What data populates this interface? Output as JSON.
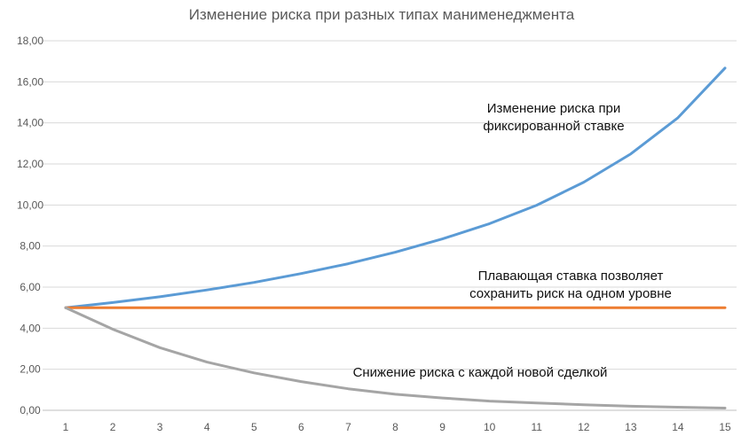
{
  "chart_data": {
    "type": "line",
    "title": "Изменение риска при разных типах манименеджмента",
    "xlabel": "",
    "ylabel": "",
    "x": [
      1,
      2,
      3,
      4,
      5,
      6,
      7,
      8,
      9,
      10,
      11,
      12,
      13,
      14,
      15
    ],
    "x_tick_labels": [
      "1",
      "2",
      "3",
      "4",
      "5",
      "6",
      "7",
      "8",
      "9",
      "10",
      "11",
      "12",
      "13",
      "14",
      "15"
    ],
    "ylim": [
      0,
      18
    ],
    "y_tick_values": [
      0,
      2,
      4,
      6,
      8,
      10,
      12,
      14,
      16,
      18
    ],
    "y_tick_labels": [
      "0,00",
      "2,00",
      "4,00",
      "6,00",
      "8,00",
      "10,00",
      "12,00",
      "14,00",
      "16,00",
      "18,00"
    ],
    "grid": true,
    "legend": "none",
    "series": [
      {
        "values": [
          5.0,
          5.25,
          5.53,
          5.86,
          6.23,
          6.66,
          7.14,
          7.7,
          8.35,
          9.09,
          9.99,
          11.11,
          12.49,
          14.25,
          16.67
        ],
        "color": "#5b9bd5"
      },
      {
        "values": [
          5.0,
          5.0,
          5.0,
          5.0,
          5.0,
          5.0,
          5.0,
          5.0,
          5.0,
          5.0,
          5.0,
          5.0,
          5.0,
          5.0,
          5.0
        ],
        "color": "#ed7d31"
      },
      {
        "values": [
          5.0,
          3.95,
          3.05,
          2.35,
          1.82,
          1.4,
          1.05,
          0.78,
          0.6,
          0.45,
          0.36,
          0.27,
          0.2,
          0.15,
          0.11
        ],
        "color": "#a5a5a5"
      }
    ],
    "annotations": [
      {
        "lines": [
          "Изменение риска при",
          "фиксированной ставке"
        ]
      },
      {
        "lines": [
          "Плавающая ставка позволяет",
          "сохранить риск на одном уровне"
        ]
      },
      {
        "lines": [
          "Снижение риска с каждой новой сделкой"
        ]
      }
    ]
  }
}
